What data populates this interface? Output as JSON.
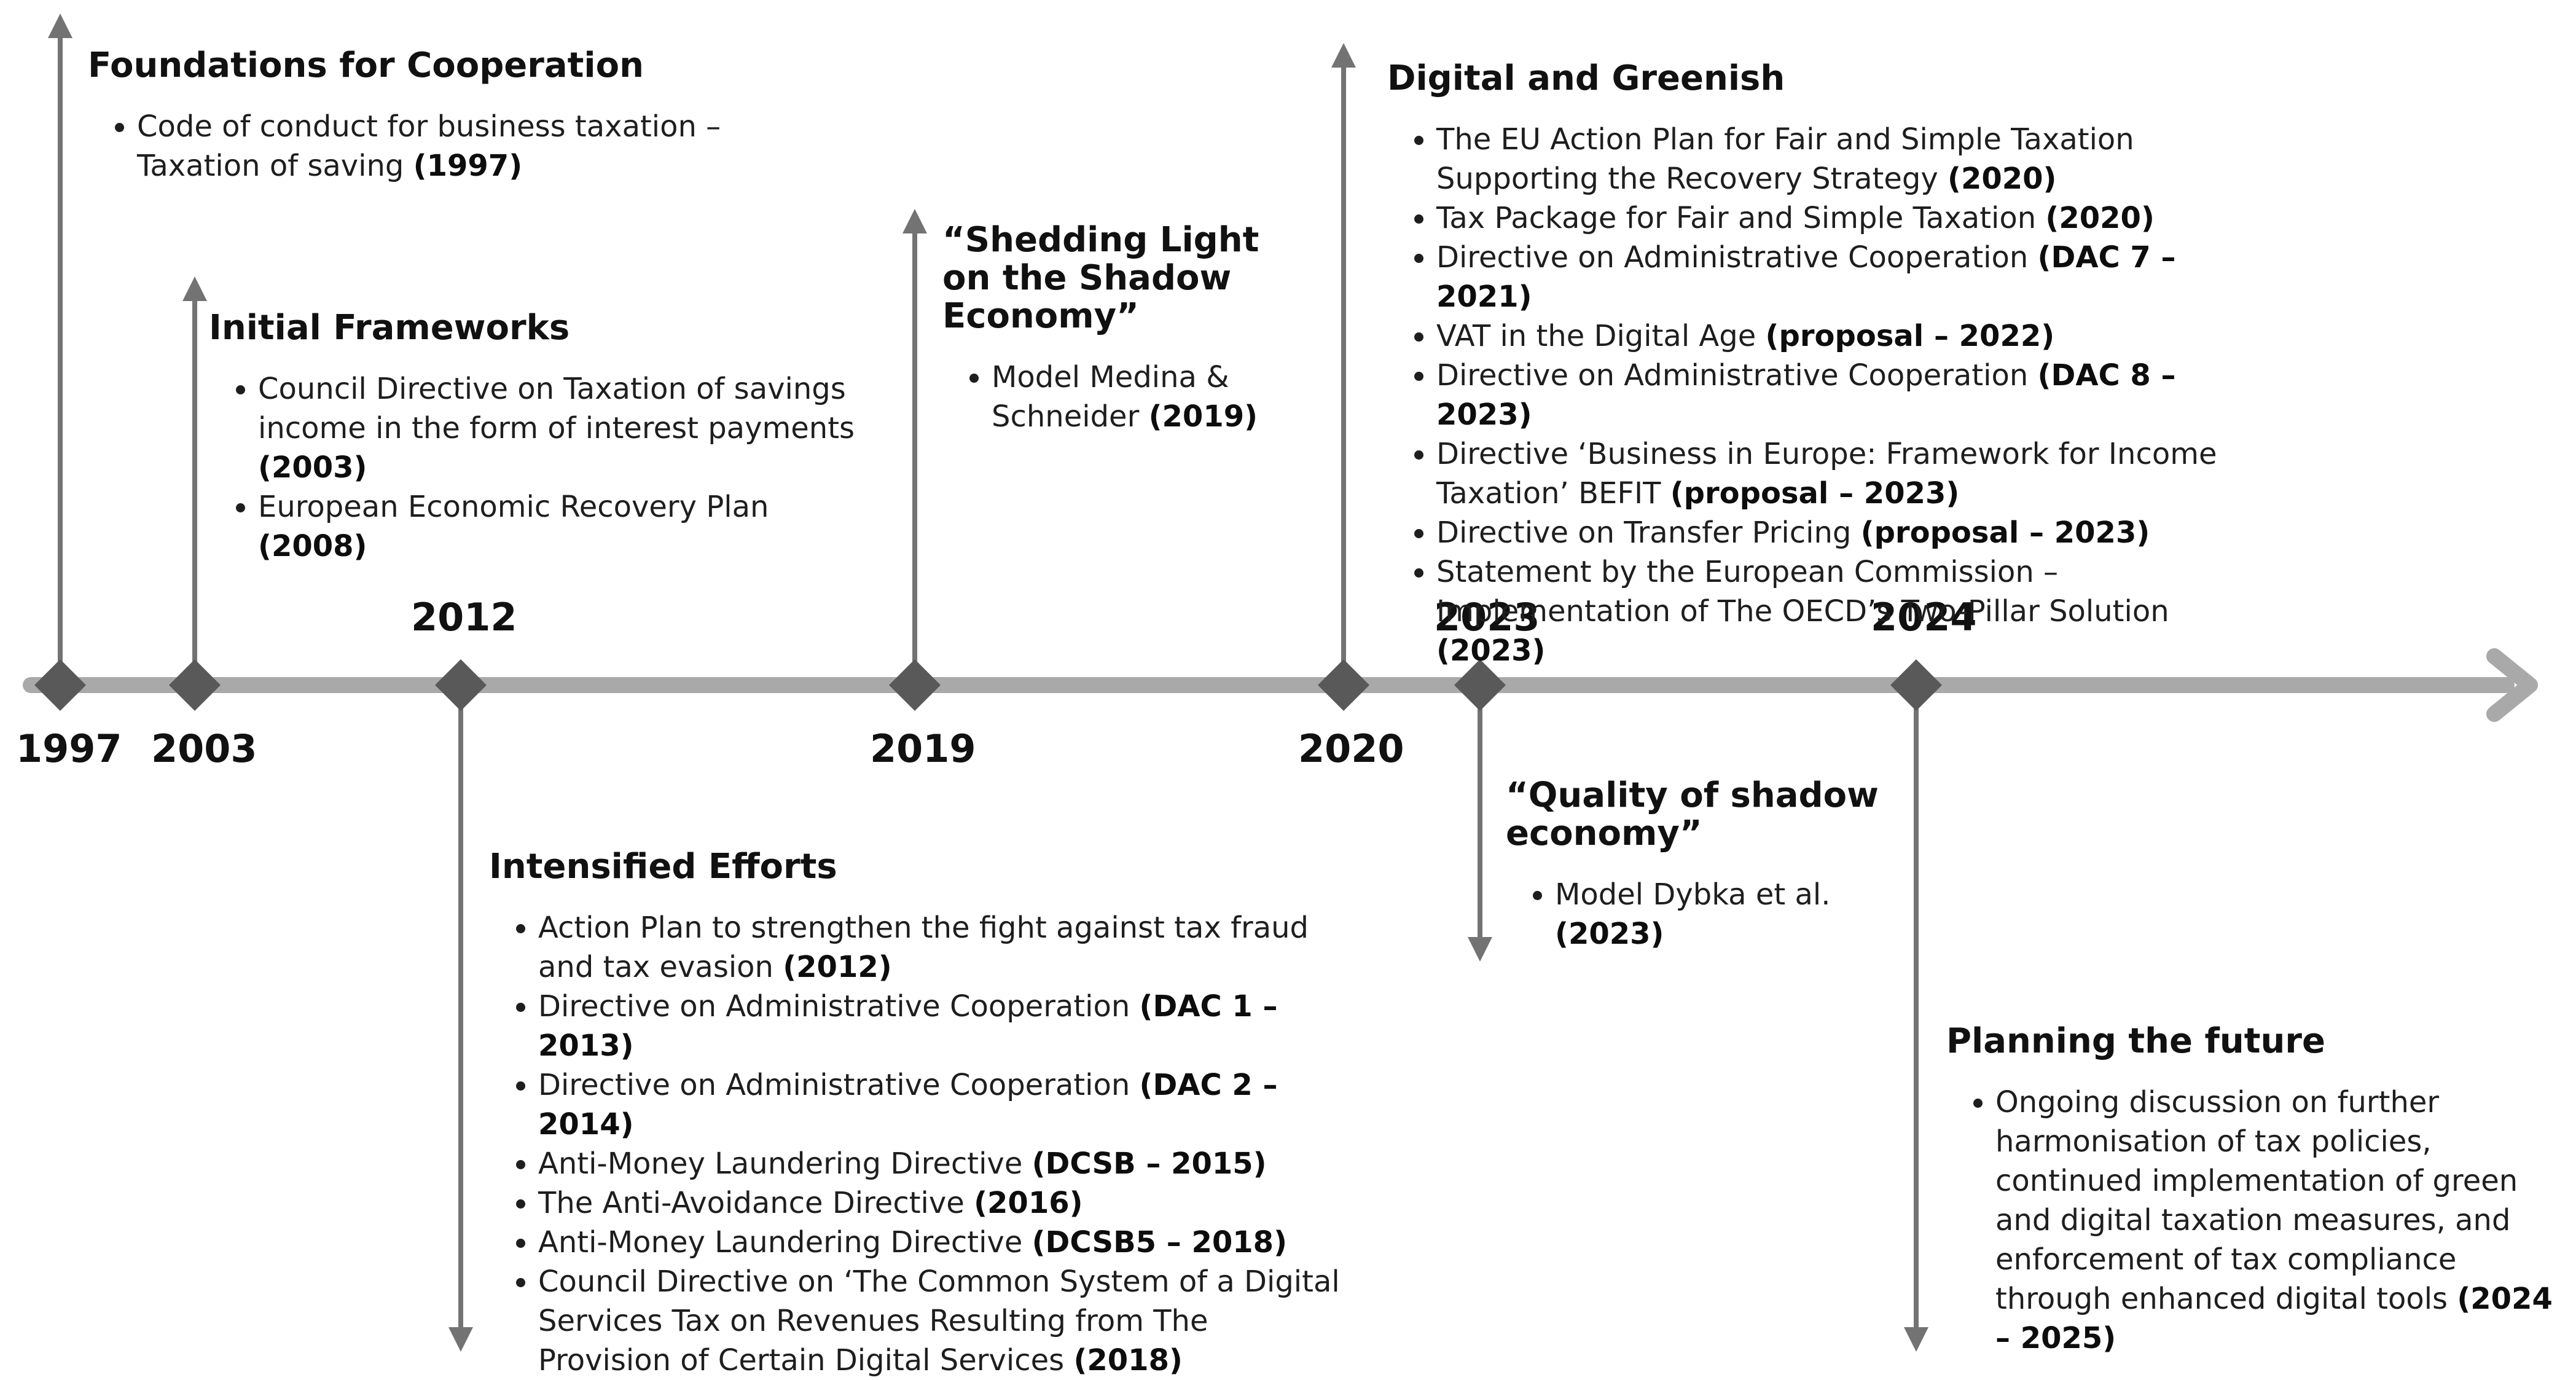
{
  "timeline": {
    "colors": {
      "axis": "#a9a9a9",
      "marker": "#595959",
      "arrow": "#737373",
      "text": "#111111"
    },
    "years": [
      "1997",
      "2003",
      "2012",
      "2019",
      "2020",
      "2023",
      "2024"
    ]
  },
  "events": [
    {
      "title": "Foundations for Cooperation",
      "items": [
        {
          "text": "Code of conduct for business taxation  – Taxation of saving",
          "bold": "(1997)"
        }
      ]
    },
    {
      "title": "Initial Frameworks",
      "items": [
        {
          "text": "Council Directive on Taxation of savings income in the form of interest payments",
          "bold": "(2003)"
        },
        {
          "text": "European Economic Recovery Plan",
          "bold": "(2008)"
        }
      ]
    },
    {
      "title": "Intensified Efforts",
      "items": [
        {
          "text": "Action Plan to strengthen the fight against tax fraud and tax evasion",
          "bold": "(2012)"
        },
        {
          "text": "Directive on Administrative Cooperation",
          "bold": "(DAC 1 – 2013)"
        },
        {
          "text": "Directive on Administrative Cooperation",
          "bold": "(DAC 2 – 2014)"
        },
        {
          "text": "Anti-Money Laundering Directive",
          "bold": "(DCSB – 2015)"
        },
        {
          "text": "The Anti-Avoidance Directive",
          "bold": "(2016)"
        },
        {
          "text": "Anti-Money Laundering Directive",
          "bold": "(DCSB5 – 2018)"
        },
        {
          "text": "Council Directive on ‘The Common System of a Digital Services Tax on Revenues Resulting from The Provision of Certain Digital Services",
          "bold": "(2018)"
        }
      ]
    },
    {
      "title": "“Shedding Light on the Shadow Economy”",
      "items": [
        {
          "text": "Model Medina & Schneider",
          "bold": "(2019)"
        }
      ]
    },
    {
      "title": "Digital and Greenish",
      "items": [
        {
          "text": "The EU Action Plan for Fair and Simple Taxation Supporting the Recovery Strategy",
          "bold": "(2020)"
        },
        {
          "text": "Tax Package for Fair and Simple Taxation",
          "bold": "(2020)"
        },
        {
          "text": "Directive on Administrative Cooperation",
          "bold": "(DAC 7 – 2021)"
        },
        {
          "text": "VAT in the Digital Age",
          "bold": "(proposal – 2022)"
        },
        {
          "text": "Directive on Administrative Cooperation",
          "bold": "(DAC 8 – 2023)"
        },
        {
          "text": "Directive ‘Business in Europe: Framework for Income Taxation’ BEFIT",
          "bold": "(proposal – 2023)"
        },
        {
          "text": "Directive on Transfer Pricing",
          "bold": "(proposal – 2023)"
        },
        {
          "text": "Statement by the European Commission – Implementation of The OECD’s Two-Pillar Solution",
          "bold": "(2023)"
        }
      ]
    },
    {
      "title": "“Quality of shadow economy”",
      "items": [
        {
          "text": "Model Dybka et al.",
          "bold": "(2023)"
        }
      ]
    },
    {
      "title": "Planning the future",
      "items": [
        {
          "text": "Ongoing discussion on further harmonisation of tax policies, continued implementation of green and digital taxation measures, and enforcement of tax compliance through enhanced digital tools",
          "bold": "(2024 – 2025)"
        }
      ]
    }
  ]
}
